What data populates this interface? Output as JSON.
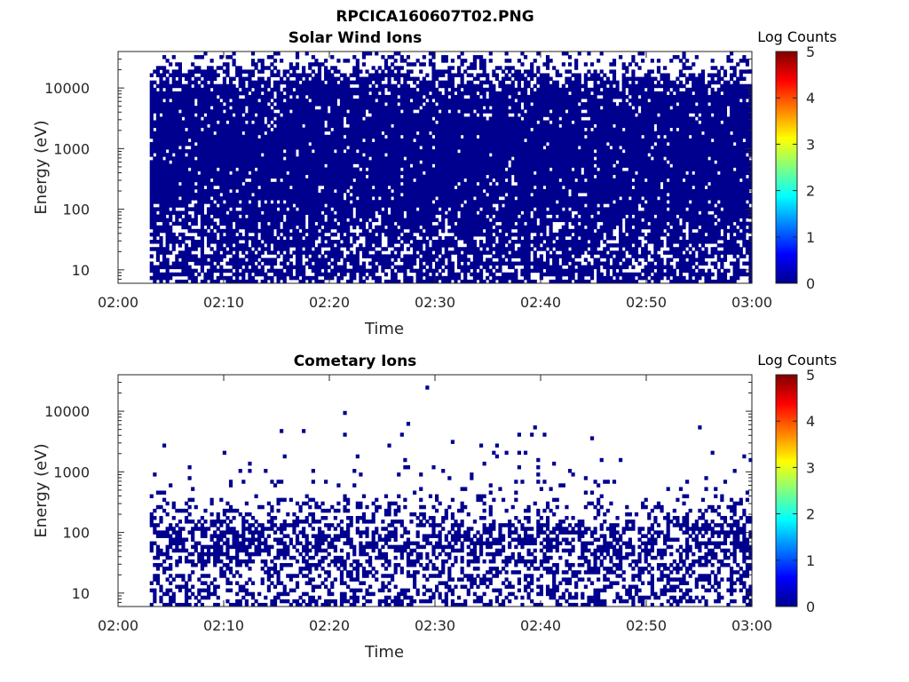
{
  "figure_title": "RPCICA160607T02.PNG",
  "colors": {
    "cell": "#00008f",
    "axis": "#262626",
    "colormap": [
      "#00008f",
      "#0000ff",
      "#0080ff",
      "#00ffff",
      "#80ff80",
      "#ffff00",
      "#ff8000",
      "#ff0000",
      "#800000"
    ]
  },
  "chart_data": [
    {
      "type": "heatmap",
      "title": "Solar Wind Ions",
      "xlabel": "Time",
      "ylabel": "Energy (eV)",
      "x_range": [
        "02:00",
        "03:00"
      ],
      "x_ticks": [
        "02:00",
        "02:10",
        "02:20",
        "02:30",
        "02:40",
        "02:50",
        "03:00"
      ],
      "y_scale": "log",
      "y_range": [
        6,
        40000
      ],
      "y_ticks": [
        "10",
        "100",
        "1000",
        "10000"
      ],
      "data_start": "02:03",
      "data_end": "03:00",
      "colorbar": {
        "label": "Log Counts",
        "range": [
          0,
          5
        ],
        "ticks": [
          "0",
          "1",
          "2",
          "3",
          "4",
          "5"
        ]
      },
      "fill_profile": [
        {
          "energy_ev": 6,
          "occupancy": 0.65
        },
        {
          "energy_ev": 30,
          "occupancy": 0.7
        },
        {
          "energy_ev": 60,
          "occupancy": 0.82
        },
        {
          "energy_ev": 150,
          "occupancy": 0.92
        },
        {
          "energy_ev": 1000,
          "occupancy": 0.95
        },
        {
          "energy_ev": 8000,
          "occupancy": 0.9
        },
        {
          "energy_ev": 15000,
          "occupancy": 0.65
        },
        {
          "energy_ev": 25000,
          "occupancy": 0.28
        },
        {
          "energy_ev": 40000,
          "occupancy": 0.1
        }
      ],
      "dominant_value": 0
    },
    {
      "type": "heatmap",
      "title": "Cometary Ions",
      "xlabel": "Time",
      "ylabel": "Energy (eV)",
      "x_range": [
        "02:00",
        "03:00"
      ],
      "x_ticks": [
        "02:00",
        "02:10",
        "02:20",
        "02:30",
        "02:40",
        "02:50",
        "03:00"
      ],
      "y_scale": "log",
      "y_range": [
        6,
        40000
      ],
      "y_ticks": [
        "10",
        "100",
        "1000",
        "10000"
      ],
      "data_start": "02:03",
      "data_end": "03:00",
      "colorbar": {
        "label": "Log Counts",
        "range": [
          0,
          5
        ],
        "ticks": [
          "0",
          "1",
          "2",
          "3",
          "4",
          "5"
        ]
      },
      "fill_profile": [
        {
          "energy_ev": 6,
          "occupancy": 0.45
        },
        {
          "energy_ev": 15,
          "occupancy": 0.35
        },
        {
          "energy_ev": 30,
          "occupancy": 0.45
        },
        {
          "energy_ev": 60,
          "occupancy": 0.55
        },
        {
          "energy_ev": 120,
          "occupancy": 0.5
        },
        {
          "energy_ev": 200,
          "occupancy": 0.3
        },
        {
          "energy_ev": 400,
          "occupancy": 0.08
        },
        {
          "energy_ev": 1500,
          "occupancy": 0.02
        },
        {
          "energy_ev": 5000,
          "occupancy": 0.005
        },
        {
          "energy_ev": 40000,
          "occupancy": 0.0
        }
      ],
      "dominant_value": 0
    }
  ]
}
